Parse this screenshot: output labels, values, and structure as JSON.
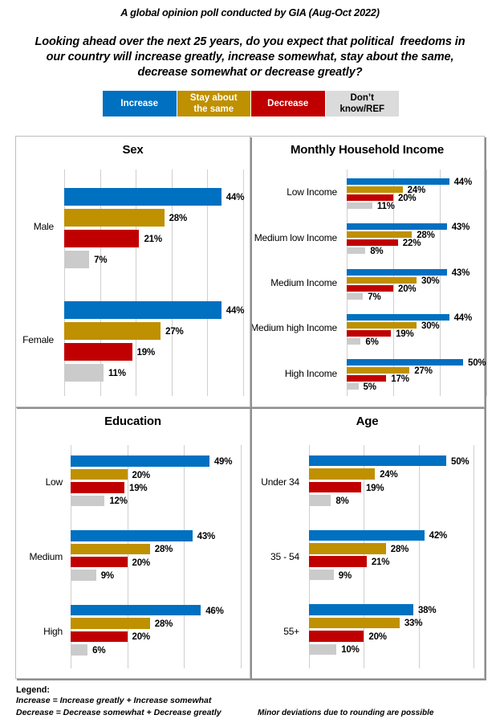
{
  "header": {
    "source_line": "A global opinion poll conducted by GIA (Aug-Oct 2022)",
    "question_lines": [
      "Looking ahead over the next 25 years, do you expect that political  freedoms in",
      "our country will increase greatly, increase somewhat, stay about the same,",
      "decrease somewhat or decrease greatly?"
    ]
  },
  "legend": {
    "items": [
      {
        "label": "Increase",
        "label_lines": [
          "Increase"
        ],
        "color": "#0070C0",
        "text_color": "#FFFFFF"
      },
      {
        "label": "Stay about the same",
        "label_lines": [
          "Stay about",
          "the same"
        ],
        "color": "#BF9000",
        "text_color": "#FFFFFF"
      },
      {
        "label": "Decrease",
        "label_lines": [
          "Decrease"
        ],
        "color": "#C00000",
        "text_color": "#FFFFFF"
      },
      {
        "label": "Don’t know/REF",
        "label_lines": [
          "Don’t",
          "know/REF"
        ],
        "color": "#DBDBDB",
        "text_color": "#000000"
      }
    ]
  },
  "series_colors": {
    "increase": "#0070C0",
    "stay": "#BF9000",
    "decrease": "#C00000",
    "dontknow": "#CBCBCB"
  },
  "chart_data": [
    {
      "type": "bar",
      "orientation": "horizontal",
      "title": "Sex",
      "categories": [
        "Male",
        "Female"
      ],
      "series": [
        {
          "name": "Increase",
          "values": [
            44,
            44
          ]
        },
        {
          "name": "Stay about the same",
          "values": [
            28,
            27
          ]
        },
        {
          "name": "Decrease",
          "values": [
            21,
            19
          ]
        },
        {
          "name": "Don’t know/REF",
          "values": [
            7,
            11
          ]
        }
      ],
      "unit": "%",
      "xlim": [
        0,
        50
      ],
      "grid_step": 10,
      "grid": true,
      "legend_position": "none"
    },
    {
      "type": "bar",
      "orientation": "horizontal",
      "title": "Monthly Household Income",
      "categories": [
        "Low Income",
        "Medium low Income",
        "Medium Income",
        "Medium high Income",
        "High Income"
      ],
      "series": [
        {
          "name": "Increase",
          "values": [
            44,
            43,
            43,
            44,
            50
          ]
        },
        {
          "name": "Stay about the same",
          "values": [
            24,
            28,
            30,
            30,
            27
          ]
        },
        {
          "name": "Decrease",
          "values": [
            20,
            22,
            20,
            19,
            17
          ]
        },
        {
          "name": "Don’t know/REF",
          "values": [
            11,
            8,
            7,
            6,
            5
          ]
        }
      ],
      "unit": "%",
      "xlim": [
        0,
        60
      ],
      "grid_step": 20,
      "grid": true,
      "legend_position": "none"
    },
    {
      "type": "bar",
      "orientation": "horizontal",
      "title": "Education",
      "categories": [
        "Low",
        "Medium",
        "High"
      ],
      "series": [
        {
          "name": "Increase",
          "values": [
            49,
            43,
            46
          ]
        },
        {
          "name": "Stay about the same",
          "values": [
            20,
            28,
            28
          ]
        },
        {
          "name": "Decrease",
          "values": [
            19,
            20,
            20
          ]
        },
        {
          "name": "Don’t know/REF",
          "values": [
            12,
            9,
            6
          ]
        }
      ],
      "unit": "%",
      "xlim": [
        0,
        60
      ],
      "grid_step": 20,
      "grid": true,
      "legend_position": "none"
    },
    {
      "type": "bar",
      "orientation": "horizontal",
      "title": "Age",
      "categories": [
        "Under 34",
        "35 - 54",
        "55+"
      ],
      "series": [
        {
          "name": "Increase",
          "values": [
            50,
            42,
            38
          ]
        },
        {
          "name": "Stay about the same",
          "values": [
            24,
            28,
            33
          ]
        },
        {
          "name": "Decrease",
          "values": [
            19,
            21,
            20
          ]
        },
        {
          "name": "Don’t know/REF",
          "values": [
            8,
            9,
            10
          ]
        }
      ],
      "unit": "%",
      "xlim": [
        0,
        60
      ],
      "grid_step": 20,
      "grid": true,
      "legend_position": "none"
    }
  ],
  "footer": {
    "legend_heading": "Legend:",
    "legend_lines": [
      "Increase = Increase greatly + Increase somewhat",
      "Decrease = Decrease somewhat + Decrease greatly"
    ],
    "note": "Minor deviations due to rounding are possible"
  }
}
